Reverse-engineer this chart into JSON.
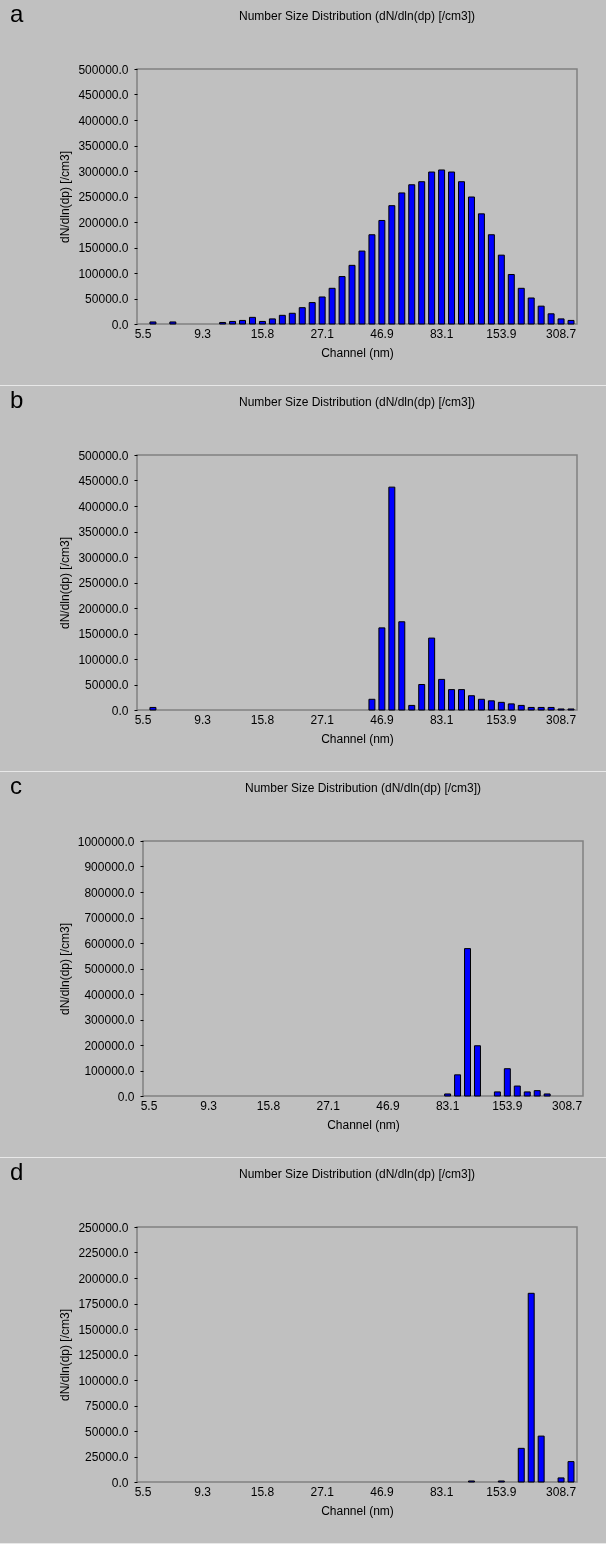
{
  "chart_data": [
    {
      "type": "bar",
      "title": "Number Size Distribution (dN/dln(dp) [/cm3])",
      "xlabel": "Channel (nm)",
      "ylabel": "dN/dln(dp) [/cm3]",
      "annotations": [
        "a"
      ],
      "color": "#0000ff",
      "categories": [
        "5.5",
        null,
        null,
        null,
        null,
        null,
        "9.3",
        null,
        null,
        null,
        null,
        null,
        "15.8",
        null,
        null,
        null,
        null,
        null,
        "27.1",
        null,
        null,
        null,
        null,
        null,
        "46.9",
        null,
        null,
        null,
        null,
        null,
        "83.1",
        null,
        null,
        null,
        null,
        null,
        "153.9",
        null,
        null,
        null,
        null,
        null,
        "308.7",
        null
      ],
      "values": [
        0,
        4000,
        0,
        4000,
        0,
        0,
        0,
        0,
        3000,
        5000,
        7000,
        13000,
        5000,
        10000,
        17000,
        21000,
        32000,
        42000,
        53000,
        70000,
        93000,
        115000,
        143000,
        175000,
        203000,
        232000,
        257000,
        273000,
        279000,
        298000,
        302000,
        298000,
        279000,
        249000,
        216000,
        175000,
        135000,
        97000,
        70000,
        51000,
        35000,
        20000,
        10000,
        7000
      ],
      "ylim": [
        0,
        500000
      ],
      "yticks": [
        {
          "value": 0,
          "label": "0.0"
        },
        {
          "value": 50000,
          "label": "50000.0"
        },
        {
          "value": 100000,
          "label": "100000.0"
        },
        {
          "value": 150000,
          "label": "150000.0"
        },
        {
          "value": 200000,
          "label": "200000.0"
        },
        {
          "value": 250000,
          "label": "250000.0"
        },
        {
          "value": 300000,
          "label": "300000.0"
        },
        {
          "value": 350000,
          "label": "350000.0"
        },
        {
          "value": 400000,
          "label": "400000.0"
        },
        {
          "value": 450000,
          "label": "450000.0"
        },
        {
          "value": 500000,
          "label": "500000.0"
        }
      ]
    },
    {
      "type": "bar",
      "title": "Number Size Distribution (dN/dln(dp) [/cm3])",
      "xlabel": "Channel (nm)",
      "ylabel": "dN/dln(dp) [/cm3]",
      "annotations": [
        "b"
      ],
      "color": "#0000ff",
      "categories": [
        "5.5",
        null,
        null,
        null,
        null,
        null,
        "9.3",
        null,
        null,
        null,
        null,
        null,
        "15.8",
        null,
        null,
        null,
        null,
        null,
        "27.1",
        null,
        null,
        null,
        null,
        null,
        "46.9",
        null,
        null,
        null,
        null,
        null,
        "83.1",
        null,
        null,
        null,
        null,
        null,
        "153.9",
        null,
        null,
        null,
        null,
        null,
        "308.7",
        null
      ],
      "values": [
        0,
        5000,
        0,
        0,
        0,
        0,
        0,
        0,
        0,
        0,
        0,
        0,
        0,
        0,
        0,
        0,
        0,
        0,
        0,
        0,
        0,
        0,
        0,
        21000,
        161000,
        437000,
        173000,
        9000,
        50000,
        141000,
        60000,
        40000,
        40000,
        28000,
        21000,
        18000,
        15000,
        12000,
        9000,
        5000,
        5000,
        5000,
        2000,
        2000
      ],
      "ylim": [
        0,
        500000
      ],
      "yticks": [
        {
          "value": 0,
          "label": "0.0"
        },
        {
          "value": 50000,
          "label": "50000.0"
        },
        {
          "value": 100000,
          "label": "100000.0"
        },
        {
          "value": 150000,
          "label": "150000.0"
        },
        {
          "value": 200000,
          "label": "200000.0"
        },
        {
          "value": 250000,
          "label": "250000.0"
        },
        {
          "value": 300000,
          "label": "300000.0"
        },
        {
          "value": 350000,
          "label": "350000.0"
        },
        {
          "value": 400000,
          "label": "400000.0"
        },
        {
          "value": 450000,
          "label": "450000.0"
        },
        {
          "value": 500000,
          "label": "500000.0"
        }
      ]
    },
    {
      "type": "bar",
      "title": "Number Size Distribution (dN/dln(dp) [/cm3])",
      "xlabel": "Channel (nm)",
      "ylabel": "dN/dln(dp) [/cm3]",
      "annotations": [
        "c"
      ],
      "color": "#0000ff",
      "categories": [
        "5.5",
        null,
        null,
        null,
        null,
        null,
        "9.3",
        null,
        null,
        null,
        null,
        null,
        "15.8",
        null,
        null,
        null,
        null,
        null,
        "27.1",
        null,
        null,
        null,
        null,
        null,
        "46.9",
        null,
        null,
        null,
        null,
        null,
        "83.1",
        null,
        null,
        null,
        null,
        null,
        "153.9",
        null,
        null,
        null,
        null,
        null,
        "308.7",
        null
      ],
      "values": [
        0,
        0,
        0,
        0,
        0,
        0,
        0,
        0,
        0,
        0,
        0,
        0,
        0,
        0,
        0,
        0,
        0,
        0,
        0,
        0,
        0,
        0,
        0,
        0,
        0,
        0,
        0,
        0,
        0,
        0,
        8000,
        83000,
        578000,
        197000,
        0,
        16000,
        107000,
        39000,
        16000,
        21000,
        8000,
        0,
        0,
        0
      ],
      "ylim": [
        0,
        1000000
      ],
      "yticks": [
        {
          "value": 0,
          "label": "0.0"
        },
        {
          "value": 100000,
          "label": "100000.0"
        },
        {
          "value": 200000,
          "label": "200000.0"
        },
        {
          "value": 300000,
          "label": "300000.0"
        },
        {
          "value": 400000,
          "label": "400000.0"
        },
        {
          "value": 500000,
          "label": "500000.0"
        },
        {
          "value": 600000,
          "label": "600000.0"
        },
        {
          "value": 700000,
          "label": "700000.0"
        },
        {
          "value": 800000,
          "label": "800000.0"
        },
        {
          "value": 900000,
          "label": "900000.0"
        },
        {
          "value": 1000000,
          "label": "1000000.0"
        }
      ]
    },
    {
      "type": "bar",
      "title": "Number Size Distribution (dN/dln(dp) [/cm3])",
      "xlabel": "Channel (nm)",
      "ylabel": "dN/dln(dp) [/cm3]",
      "annotations": [
        "d"
      ],
      "color": "#0000ff",
      "categories": [
        "5.5",
        null,
        null,
        null,
        null,
        null,
        "9.3",
        null,
        null,
        null,
        null,
        null,
        "15.8",
        null,
        null,
        null,
        null,
        null,
        "27.1",
        null,
        null,
        null,
        null,
        null,
        "46.9",
        null,
        null,
        null,
        null,
        null,
        "83.1",
        null,
        null,
        null,
        null,
        null,
        "153.9",
        null,
        null,
        null,
        null,
        null,
        "308.7",
        null
      ],
      "values": [
        0,
        0,
        0,
        0,
        0,
        0,
        0,
        0,
        0,
        0,
        0,
        0,
        0,
        0,
        0,
        0,
        0,
        0,
        0,
        0,
        0,
        0,
        0,
        0,
        0,
        0,
        0,
        0,
        0,
        0,
        0,
        0,
        0,
        1000,
        0,
        0,
        1000,
        0,
        33000,
        185000,
        45000,
        0,
        4000,
        20000
      ],
      "ylim": [
        0,
        250000
      ],
      "yticks": [
        {
          "value": 0,
          "label": "0.0"
        },
        {
          "value": 25000,
          "label": "25000.0"
        },
        {
          "value": 50000,
          "label": "50000.0"
        },
        {
          "value": 75000,
          "label": "75000.0"
        },
        {
          "value": 100000,
          "label": "100000.0"
        },
        {
          "value": 125000,
          "label": "125000.0"
        },
        {
          "value": 150000,
          "label": "150000.0"
        },
        {
          "value": 175000,
          "label": "175000.0"
        },
        {
          "value": 200000,
          "label": "200000.0"
        },
        {
          "value": 225000,
          "label": "225000.0"
        },
        {
          "value": 250000,
          "label": "250000.0"
        }
      ]
    }
  ]
}
